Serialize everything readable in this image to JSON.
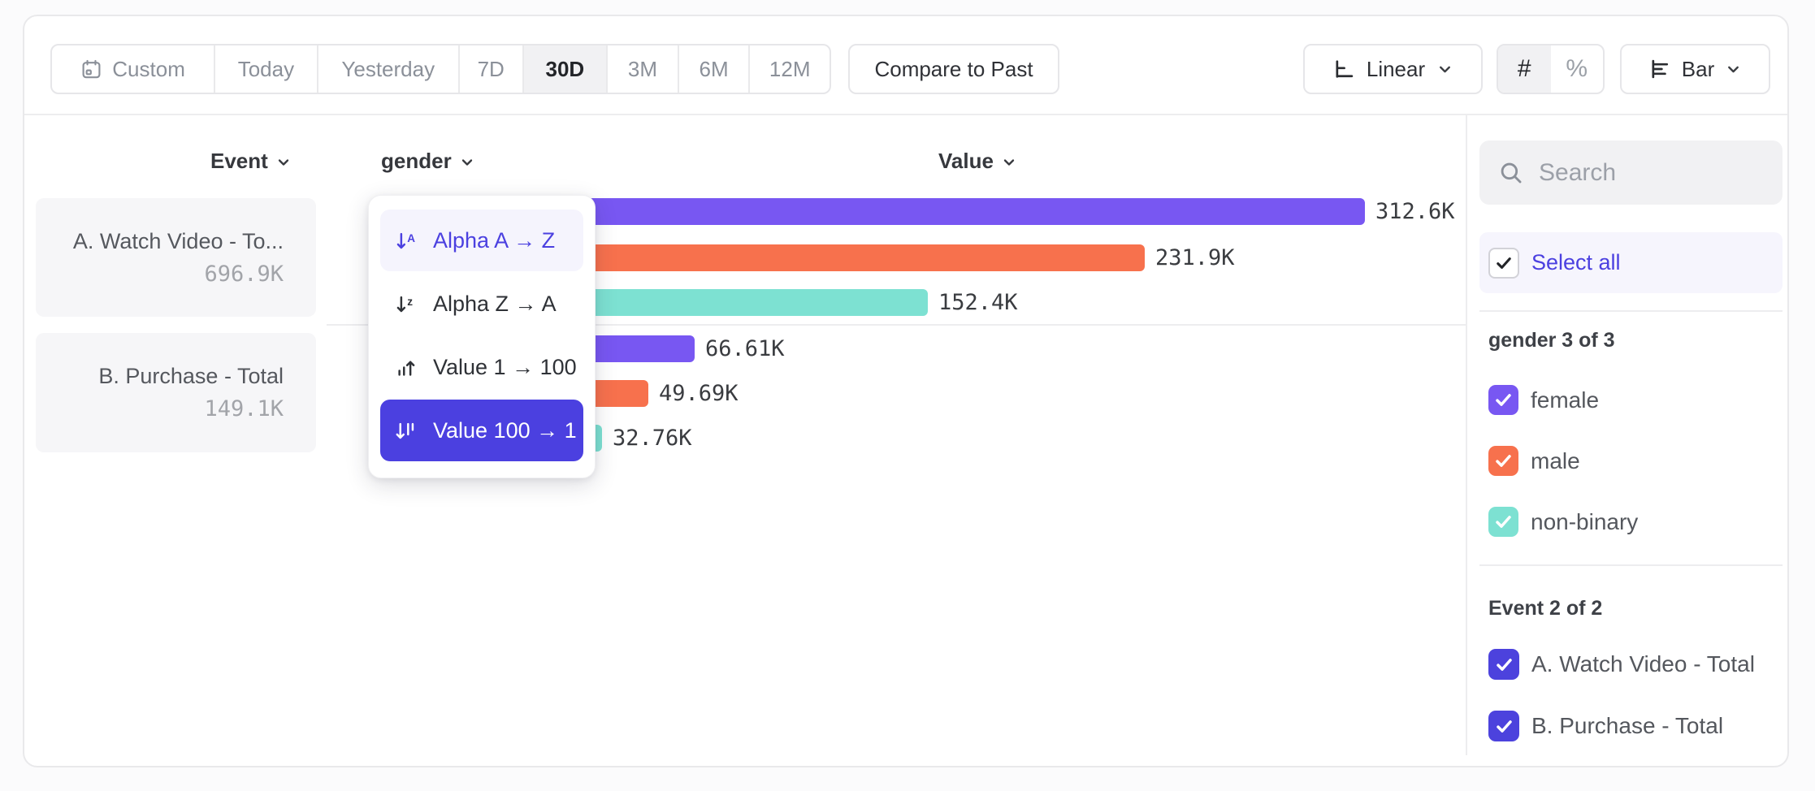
{
  "toolbar": {
    "date_ranges": [
      "Custom",
      "Today",
      "Yesterday",
      "7D",
      "30D",
      "3M",
      "6M",
      "12M"
    ],
    "selected_range": "30D",
    "compare_label": "Compare to Past",
    "scale_label": "Linear",
    "count_symbol": "#",
    "percent_symbol": "%",
    "chart_type_label": "Bar"
  },
  "columns": {
    "event_label": "Event",
    "breakdown_label": "gender",
    "value_label": "Value"
  },
  "event_cards": [
    {
      "name": "A. Watch Video - To...",
      "total": "696.9K"
    },
    {
      "name": "B. Purchase - Total",
      "total": "149.1K"
    }
  ],
  "sort_menu": {
    "items": [
      {
        "label": "Alpha A → Z"
      },
      {
        "label": "Alpha Z → A"
      },
      {
        "label": "Value 1 → 100"
      },
      {
        "label": "Value 100 → 1"
      }
    ],
    "highlighted": "Alpha A → Z",
    "selected": "Value 100 → 1"
  },
  "chart_data": {
    "type": "bar",
    "orientation": "horizontal",
    "value_axis": "Value",
    "breakdown": "gender",
    "sort": "Value 100 → 1",
    "categories": [
      "female",
      "male",
      "non-binary"
    ],
    "colors": {
      "female": "#7857F2",
      "male": "#F7714D",
      "non-binary": "#7DE1D2"
    },
    "series": [
      {
        "group": "A. Watch Video - Total",
        "values": [
          312600,
          231900,
          152400
        ],
        "labels": [
          "312.6K",
          "231.9K",
          "152.4K"
        ]
      },
      {
        "group": "B. Purchase - Total",
        "values": [
          66610,
          49690,
          32760
        ],
        "labels": [
          "66.61K",
          "49.69K",
          "32.76K"
        ]
      }
    ]
  },
  "sidebar": {
    "search_placeholder": "Search",
    "select_all_label": "Select all",
    "groups": [
      {
        "title": "gender 3 of 3",
        "items": [
          {
            "label": "female",
            "color": "#7857F2",
            "checked": true
          },
          {
            "label": "male",
            "color": "#F7714D",
            "checked": true
          },
          {
            "label": "non-binary",
            "color": "#7DE1D2",
            "checked": true
          }
        ]
      },
      {
        "title": "Event 2 of 2",
        "items": [
          {
            "label": "A. Watch Video - Total",
            "color": "#4C42DD",
            "checked": true
          },
          {
            "label": "B. Purchase - Total",
            "color": "#4C42DD",
            "checked": true
          }
        ]
      }
    ]
  }
}
